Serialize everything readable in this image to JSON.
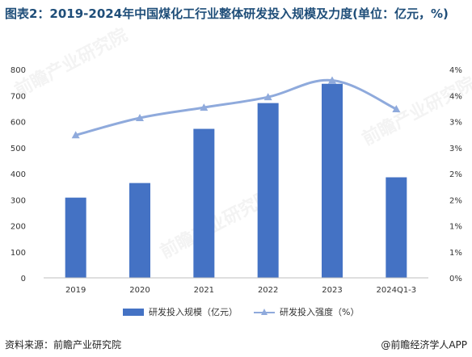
{
  "title": "图表2：2019-2024年中国煤化工行业整体研发投入规模及力度(单位：亿元，%)",
  "footer": {
    "source": "资料来源：前瞻产业研究院",
    "credit": "@前瞻经济学人APP"
  },
  "watermark": "前瞻产业研究院",
  "colors": {
    "bar": "#4472c4",
    "line": "#8faadc"
  },
  "chart_data": {
    "type": "bar",
    "categories": [
      "2019",
      "2020",
      "2021",
      "2022",
      "2023",
      "2024Q1-3"
    ],
    "series": [
      {
        "name": "研发投入规模（亿元）",
        "type": "bar",
        "axis": "left",
        "values": [
          308,
          364,
          572,
          671,
          745,
          386
        ]
      },
      {
        "name": "研发投入强度（%）",
        "type": "line",
        "axis": "right",
        "values": [
          2.74,
          3.07,
          3.27,
          3.47,
          3.79,
          3.24
        ]
      }
    ],
    "y_left": {
      "min": 0,
      "max": 800,
      "ticks": [
        "0",
        "100",
        "200",
        "300",
        "400",
        "500",
        "600",
        "700",
        "800"
      ]
    },
    "y_right": {
      "min": 0,
      "max": 4,
      "ticks": [
        "0%",
        "1%",
        "1%",
        "2%",
        "2%",
        "3%",
        "3%",
        "4%",
        "4%"
      ]
    },
    "grid": false,
    "legend": "bottom"
  }
}
